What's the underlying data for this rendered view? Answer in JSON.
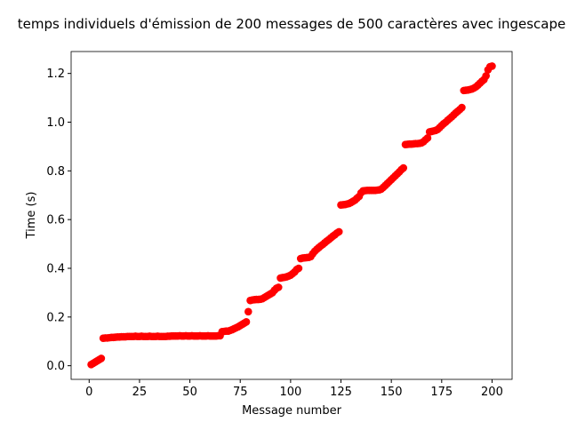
{
  "chart_data": {
    "type": "scatter",
    "title": "temps individuels d'émission de 200 messages de 500 caractères avec ingescape",
    "x_label": "Message number",
    "y_label": "Time (s)",
    "color": "#ff0000",
    "x": [
      1,
      2,
      3,
      4,
      5,
      6,
      7,
      8,
      9,
      10,
      11,
      12,
      13,
      14,
      15,
      16,
      17,
      18,
      19,
      20,
      21,
      22,
      23,
      24,
      25,
      26,
      27,
      28,
      29,
      30,
      31,
      32,
      33,
      34,
      35,
      36,
      37,
      38,
      39,
      40,
      41,
      42,
      43,
      44,
      45,
      46,
      47,
      48,
      49,
      50,
      51,
      52,
      53,
      54,
      55,
      56,
      57,
      58,
      59,
      60,
      61,
      62,
      63,
      64,
      65,
      66,
      67,
      68,
      69,
      70,
      71,
      72,
      73,
      74,
      75,
      76,
      77,
      78,
      79,
      80,
      81,
      82,
      83,
      84,
      85,
      86,
      87,
      88,
      89,
      90,
      91,
      92,
      93,
      94,
      95,
      96,
      97,
      98,
      99,
      100,
      101,
      102,
      103,
      104,
      105,
      106,
      107,
      108,
      109,
      110,
      111,
      112,
      113,
      114,
      115,
      116,
      117,
      118,
      119,
      120,
      121,
      122,
      123,
      124,
      125,
      126,
      127,
      128,
      129,
      130,
      131,
      132,
      133,
      134,
      135,
      136,
      137,
      138,
      139,
      140,
      141,
      142,
      143,
      144,
      145,
      146,
      147,
      148,
      149,
      150,
      151,
      152,
      153,
      154,
      155,
      156,
      157,
      158,
      159,
      160,
      161,
      162,
      163,
      164,
      165,
      166,
      167,
      168,
      169,
      170,
      171,
      172,
      173,
      174,
      175,
      176,
      177,
      178,
      179,
      180,
      181,
      182,
      183,
      184,
      185,
      186,
      187,
      188,
      189,
      190,
      191,
      192,
      193,
      194,
      195,
      196,
      197,
      198,
      199,
      200
    ],
    "values": [
      0.005,
      0.01,
      0.015,
      0.02,
      0.025,
      0.03,
      0.113,
      0.114,
      0.114,
      0.115,
      0.116,
      0.116,
      0.117,
      0.118,
      0.118,
      0.119,
      0.119,
      0.119,
      0.12,
      0.12,
      0.12,
      0.12,
      0.121,
      0.12,
      0.12,
      0.121,
      0.12,
      0.12,
      0.12,
      0.121,
      0.12,
      0.12,
      0.12,
      0.121,
      0.12,
      0.12,
      0.12,
      0.12,
      0.121,
      0.121,
      0.122,
      0.122,
      0.122,
      0.122,
      0.123,
      0.122,
      0.122,
      0.123,
      0.122,
      0.122,
      0.123,
      0.122,
      0.122,
      0.122,
      0.123,
      0.122,
      0.122,
      0.122,
      0.123,
      0.122,
      0.122,
      0.122,
      0.122,
      0.123,
      0.123,
      0.14,
      0.141,
      0.142,
      0.142,
      0.145,
      0.148,
      0.152,
      0.156,
      0.16,
      0.165,
      0.17,
      0.175,
      0.18,
      0.222,
      0.268,
      0.27,
      0.271,
      0.272,
      0.272,
      0.273,
      0.275,
      0.28,
      0.285,
      0.29,
      0.295,
      0.3,
      0.31,
      0.318,
      0.322,
      0.36,
      0.362,
      0.363,
      0.365,
      0.368,
      0.372,
      0.378,
      0.385,
      0.395,
      0.4,
      0.44,
      0.442,
      0.443,
      0.444,
      0.445,
      0.448,
      0.46,
      0.47,
      0.478,
      0.485,
      0.492,
      0.498,
      0.505,
      0.512,
      0.518,
      0.525,
      0.532,
      0.538,
      0.545,
      0.55,
      0.66,
      0.661,
      0.662,
      0.664,
      0.666,
      0.67,
      0.675,
      0.68,
      0.688,
      0.695,
      0.71,
      0.718,
      0.719,
      0.72,
      0.72,
      0.72,
      0.72,
      0.72,
      0.721,
      0.722,
      0.725,
      0.732,
      0.74,
      0.748,
      0.756,
      0.764,
      0.772,
      0.78,
      0.788,
      0.796,
      0.805,
      0.812,
      0.908,
      0.909,
      0.91,
      0.91,
      0.911,
      0.912,
      0.912,
      0.913,
      0.915,
      0.92,
      0.928,
      0.935,
      0.96,
      0.962,
      0.964,
      0.966,
      0.97,
      0.978,
      0.986,
      0.994,
      1.0,
      1.008,
      1.015,
      1.022,
      1.03,
      1.038,
      1.045,
      1.052,
      1.06,
      1.13,
      1.131,
      1.132,
      1.134,
      1.136,
      1.14,
      1.145,
      1.152,
      1.16,
      1.168,
      1.175,
      1.19,
      1.215,
      1.228,
      1.23
    ],
    "xlim": [
      -8.95,
      209.95
    ],
    "ylim": [
      -0.056,
      1.29
    ],
    "xticks": [
      0,
      25,
      50,
      75,
      100,
      125,
      150,
      175,
      200
    ],
    "yticks": [
      {
        "value": 0,
        "label": "0.0"
      },
      0.2,
      0.4,
      0.6,
      0.8,
      {
        "value": 1,
        "label": "1.0"
      },
      1.2
    ]
  }
}
